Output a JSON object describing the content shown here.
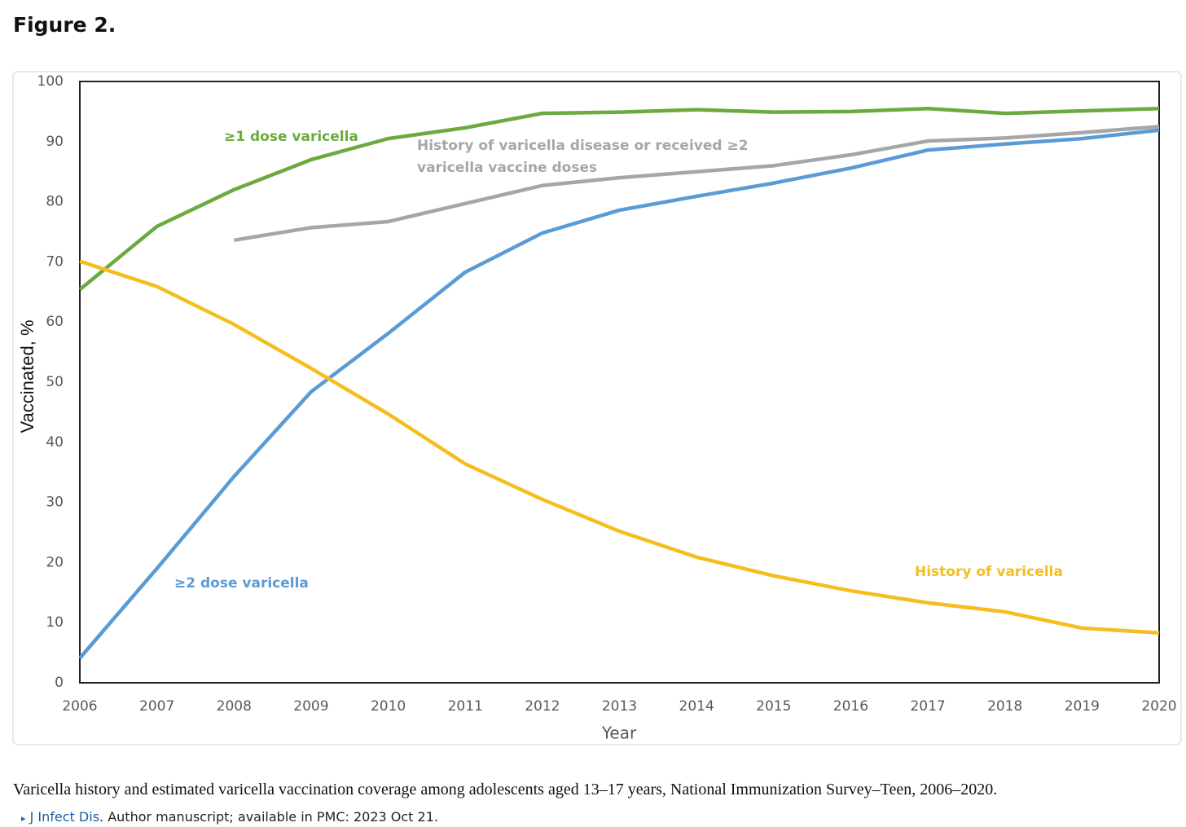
{
  "figure_label": "Figure 2.",
  "chart_data": {
    "type": "line",
    "x_label": "Year",
    "y_label": "Vaccinated, %",
    "x": [
      2006,
      2007,
      2008,
      2009,
      2010,
      2011,
      2012,
      2013,
      2014,
      2015,
      2016,
      2017,
      2018,
      2019,
      2020
    ],
    "xlim": [
      2006,
      2020
    ],
    "xticks": [
      2006,
      2007,
      2008,
      2009,
      2010,
      2011,
      2012,
      2013,
      2014,
      2015,
      2016,
      2017,
      2018,
      2019,
      2020
    ],
    "ylim": [
      0,
      100
    ],
    "yticks": [
      0,
      10,
      20,
      30,
      40,
      50,
      60,
      70,
      80,
      90,
      100
    ],
    "grid": false,
    "series": [
      {
        "name": "≥1 dose varicella",
        "color": "#6aaa3e",
        "values": [
          65.4,
          75.9,
          82.0,
          87.0,
          90.5,
          92.3,
          94.7,
          94.9,
          95.3,
          94.9,
          95.0,
          95.5,
          94.7,
          95.1,
          95.5
        ]
      },
      {
        "name": "History of varicella disease or received ≥2 varicella vaccine doses",
        "color": "#a6a6a6",
        "values": [
          null,
          null,
          73.6,
          75.7,
          76.7,
          79.7,
          82.7,
          84.0,
          85.0,
          86.0,
          87.8,
          90.1,
          90.6,
          91.5,
          92.5
        ]
      },
      {
        "name": "≥2 dose varicella",
        "color": "#5b9bd5",
        "values": [
          4.1,
          19.0,
          34.3,
          48.4,
          58.1,
          68.3,
          74.8,
          78.6,
          80.9,
          83.1,
          85.6,
          88.6,
          89.6,
          90.5,
          91.9
        ]
      },
      {
        "name": "History of varicella",
        "color": "#f5bd1f",
        "values": [
          70.1,
          65.9,
          59.6,
          52.3,
          44.7,
          36.4,
          30.5,
          25.2,
          20.9,
          17.8,
          15.3,
          13.3,
          11.8,
          9.1,
          8.3
        ]
      }
    ]
  },
  "caption": "Varicella history and estimated varicella vaccination coverage among adolescents aged 13–17 years, National Immunization Survey–Teen, 2006–2020.",
  "source": {
    "journal": "J Infect Dis",
    "note": ". Author manuscript; available in PMC: 2023 Oct 21."
  }
}
